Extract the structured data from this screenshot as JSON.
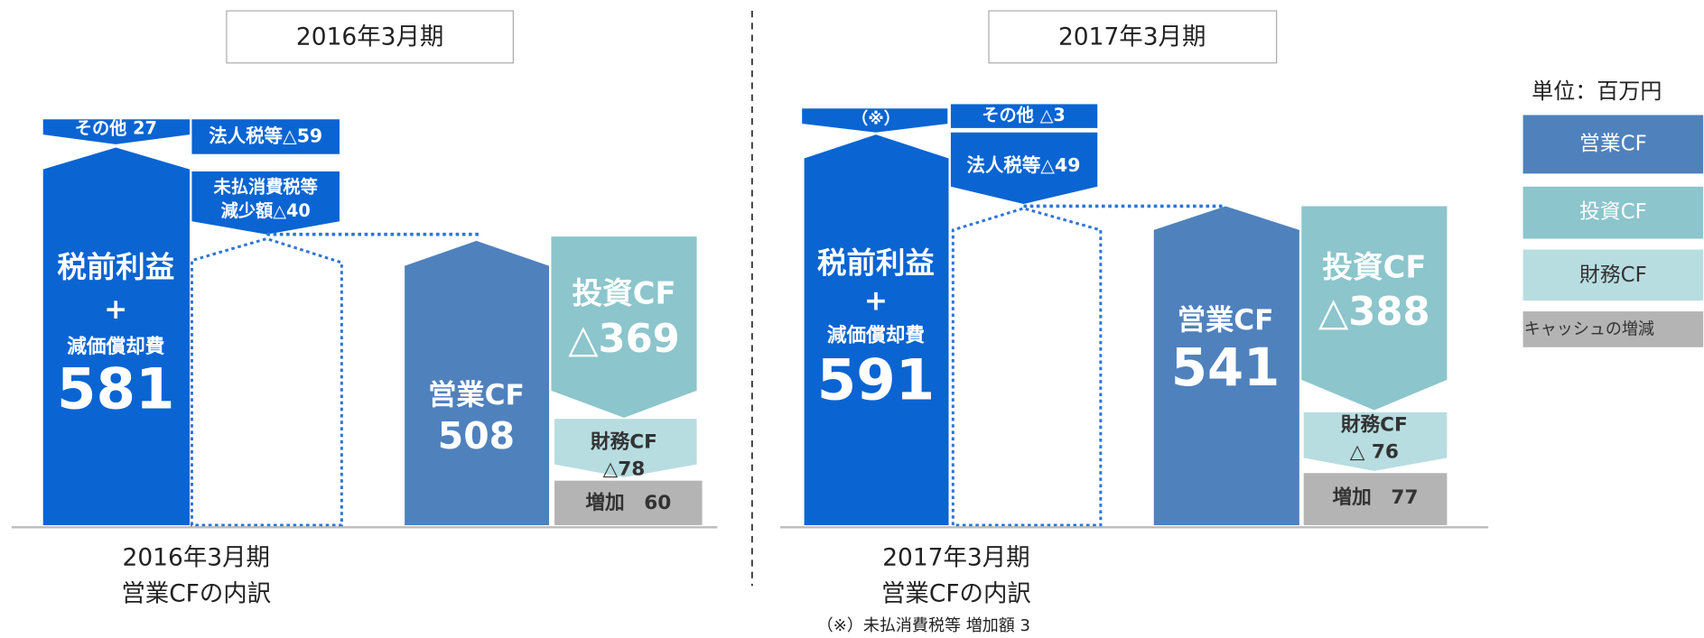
{
  "unit": "単位：百万円",
  "legend": [
    "営業CF",
    "投資CF",
    "財務CF",
    "キャッシュの増減"
  ],
  "panels": [
    {
      "header": "2016年3月期",
      "top_left": "その他 27",
      "tax": "法人税等△59",
      "tax_lines": [
        "未払消費税等",
        "減少額△40"
      ],
      "pretax": [
        "税前利益",
        "+",
        "減価償却費"
      ],
      "pretax_value": 581,
      "operating": "営業CF",
      "operating_value": 508,
      "investing": "投資CF",
      "investing_value": "△369",
      "financing": "財務CF",
      "financing_value": "△78",
      "increase": "増加　60",
      "caption": [
        "2016年3月期",
        "営業CFの内訳"
      ]
    },
    {
      "header": "2017年3月期",
      "top_left": "（※）",
      "other": "その他 △3",
      "tax": "法人税等△49",
      "pretax": [
        "税前利益",
        "+",
        "減価償却費"
      ],
      "pretax_value": 591,
      "operating": "営業CF",
      "operating_value": 541,
      "investing": "投資CF",
      "investing_value": "△388",
      "financing": "財務CF",
      "financing_value": "△ 76",
      "increase": "増加　77",
      "caption": [
        "2017年3月期",
        "営業CFの内訳"
      ],
      "note": "（※）未払消費税等 増加額 3"
    }
  ]
}
